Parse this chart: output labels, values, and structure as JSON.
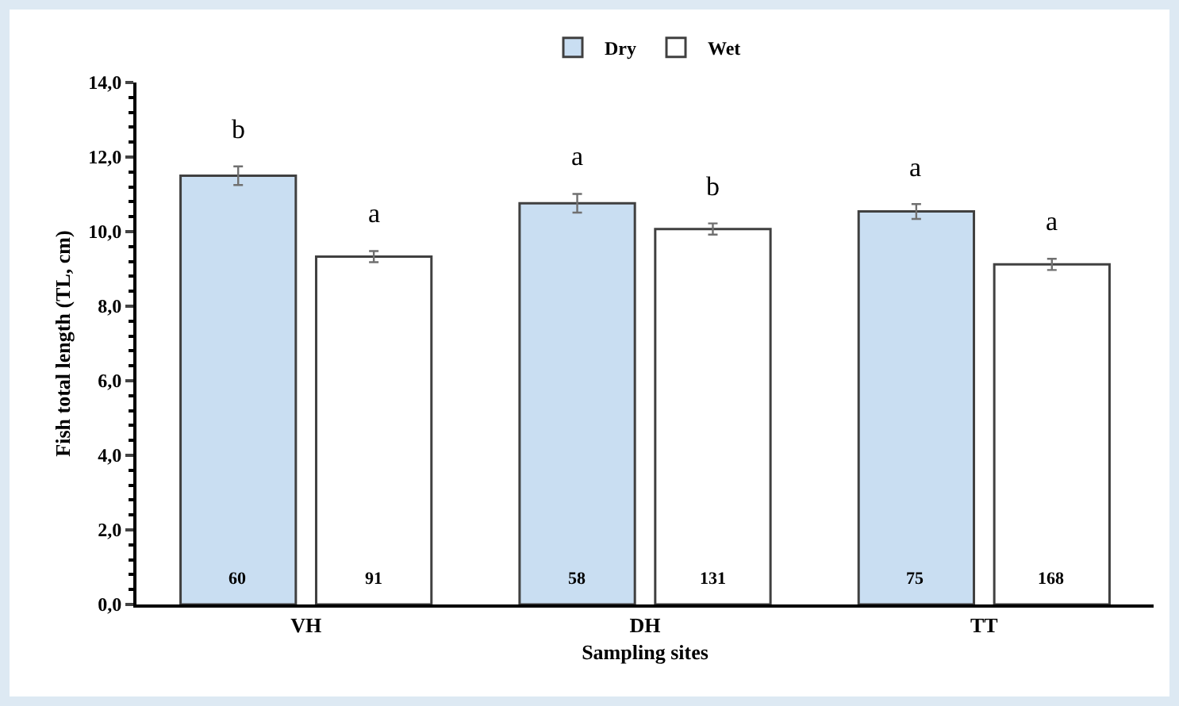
{
  "chart_data": {
    "type": "bar",
    "xlabel": "Sampling sites",
    "ylabel": "Fish total length (TL, cm)",
    "categories": [
      "VH",
      "DH",
      "TT"
    ],
    "series": [
      {
        "name": "Dry",
        "color": "#c9def2",
        "values": [
          11.5,
          10.76,
          10.54
        ],
        "errors": [
          0.25,
          0.25,
          0.2
        ],
        "value_labels": [
          "b",
          "a",
          "a"
        ]
      },
      {
        "name": "Wet",
        "color": "#ffffff",
        "values": [
          9.33,
          10.07,
          9.12
        ],
        "errors": [
          0.15,
          0.15,
          0.15
        ],
        "value_labels": [
          "a",
          "b",
          "a"
        ]
      }
    ],
    "ylim": [
      0,
      14
    ],
    "yticks": [
      {
        "value": 0,
        "label": "0,0"
      },
      {
        "value": 2,
        "label": "2,0"
      },
      {
        "value": 4,
        "label": "4,0"
      },
      {
        "value": 6,
        "label": "6,0"
      },
      {
        "value": 8,
        "label": "8,0"
      },
      {
        "value": 10,
        "label": "10,0"
      },
      {
        "value": 12,
        "label": "12,0"
      },
      {
        "value": 14,
        "label": "14,0"
      }
    ],
    "annotations": [
      "60",
      "91",
      "58",
      "131",
      "75",
      "168"
    ],
    "grid": false,
    "legend": "top"
  }
}
